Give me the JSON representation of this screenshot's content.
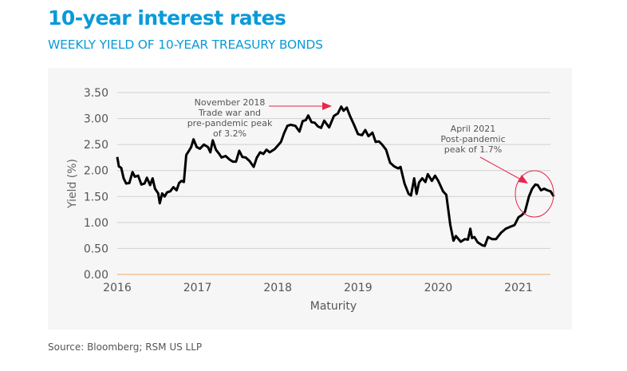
{
  "title": "10-year interest rates",
  "subtitle": "WEEKLY YIELD OF 10-YEAR TREASURY BONDS",
  "source": "Source: Bloomberg; RSM US LLP",
  "colors": {
    "title": "#0a9ad8",
    "line": "#000000",
    "annotation": "#e8264b",
    "zero_line": "#f4a460",
    "grid": "#d0d0d0"
  },
  "chart_data": {
    "type": "line",
    "xlabel": "Maturity",
    "ylabel": "Yield (%)",
    "xlim": [
      2016,
      2021.45
    ],
    "ylim": [
      0,
      3.5
    ],
    "grid": true,
    "x_ticks": [
      "2016",
      "2017",
      "2018",
      "2019",
      "2020",
      "2021"
    ],
    "y_ticks": [
      "0.00",
      "0.50",
      "1.00",
      "1.50",
      "2.00",
      "2.50",
      "3.00",
      "3.50"
    ],
    "annotations": [
      {
        "text": [
          "November 2018",
          "Trade war and",
          "pre-pandemic peak",
          "of 3.2%"
        ]
      },
      {
        "text": [
          "April 2021",
          "Post-pandemic",
          "peak of 1.7%"
        ]
      }
    ],
    "points": [
      [
        2016.0,
        2.26
      ],
      [
        2016.02,
        2.08
      ],
      [
        2016.05,
        2.05
      ],
      [
        2016.08,
        1.85
      ],
      [
        2016.11,
        1.75
      ],
      [
        2016.15,
        1.76
      ],
      [
        2016.19,
        1.97
      ],
      [
        2016.22,
        1.88
      ],
      [
        2016.26,
        1.9
      ],
      [
        2016.3,
        1.73
      ],
      [
        2016.34,
        1.75
      ],
      [
        2016.37,
        1.86
      ],
      [
        2016.41,
        1.72
      ],
      [
        2016.44,
        1.85
      ],
      [
        2016.47,
        1.65
      ],
      [
        2016.51,
        1.56
      ],
      [
        2016.53,
        1.37
      ],
      [
        2016.56,
        1.56
      ],
      [
        2016.59,
        1.5
      ],
      [
        2016.62,
        1.58
      ],
      [
        2016.66,
        1.6
      ],
      [
        2016.7,
        1.68
      ],
      [
        2016.74,
        1.62
      ],
      [
        2016.77,
        1.76
      ],
      [
        2016.8,
        1.8
      ],
      [
        2016.83,
        1.78
      ],
      [
        2016.86,
        2.3
      ],
      [
        2016.89,
        2.37
      ],
      [
        2016.92,
        2.45
      ],
      [
        2016.95,
        2.6
      ],
      [
        2016.99,
        2.45
      ],
      [
        2017.03,
        2.42
      ],
      [
        2017.08,
        2.5
      ],
      [
        2017.13,
        2.45
      ],
      [
        2017.16,
        2.35
      ],
      [
        2017.19,
        2.58
      ],
      [
        2017.23,
        2.4
      ],
      [
        2017.27,
        2.32
      ],
      [
        2017.3,
        2.25
      ],
      [
        2017.35,
        2.28
      ],
      [
        2017.4,
        2.21
      ],
      [
        2017.44,
        2.17
      ],
      [
        2017.48,
        2.17
      ],
      [
        2017.52,
        2.38
      ],
      [
        2017.56,
        2.26
      ],
      [
        2017.6,
        2.25
      ],
      [
        2017.65,
        2.18
      ],
      [
        2017.7,
        2.07
      ],
      [
        2017.74,
        2.25
      ],
      [
        2017.78,
        2.35
      ],
      [
        2017.82,
        2.32
      ],
      [
        2017.86,
        2.4
      ],
      [
        2017.9,
        2.35
      ],
      [
        2017.96,
        2.41
      ],
      [
        2018.0,
        2.48
      ],
      [
        2018.04,
        2.55
      ],
      [
        2018.08,
        2.72
      ],
      [
        2018.12,
        2.86
      ],
      [
        2018.16,
        2.88
      ],
      [
        2018.22,
        2.86
      ],
      [
        2018.27,
        2.75
      ],
      [
        2018.31,
        2.95
      ],
      [
        2018.35,
        2.97
      ],
      [
        2018.38,
        3.06
      ],
      [
        2018.42,
        2.93
      ],
      [
        2018.46,
        2.92
      ],
      [
        2018.5,
        2.85
      ],
      [
        2018.54,
        2.82
      ],
      [
        2018.58,
        2.96
      ],
      [
        2018.64,
        2.83
      ],
      [
        2018.7,
        3.05
      ],
      [
        2018.75,
        3.1
      ],
      [
        2018.79,
        3.23
      ],
      [
        2018.82,
        3.15
      ],
      [
        2018.86,
        3.21
      ],
      [
        2018.9,
        3.05
      ],
      [
        2018.95,
        2.88
      ],
      [
        2019.0,
        2.7
      ],
      [
        2019.05,
        2.68
      ],
      [
        2019.09,
        2.78
      ],
      [
        2019.13,
        2.66
      ],
      [
        2019.18,
        2.73
      ],
      [
        2019.22,
        2.55
      ],
      [
        2019.26,
        2.56
      ],
      [
        2019.3,
        2.5
      ],
      [
        2019.35,
        2.4
      ],
      [
        2019.4,
        2.15
      ],
      [
        2019.45,
        2.08
      ],
      [
        2019.5,
        2.04
      ],
      [
        2019.53,
        2.07
      ],
      [
        2019.58,
        1.75
      ],
      [
        2019.63,
        1.55
      ],
      [
        2019.66,
        1.52
      ],
      [
        2019.7,
        1.85
      ],
      [
        2019.73,
        1.55
      ],
      [
        2019.76,
        1.77
      ],
      [
        2019.8,
        1.85
      ],
      [
        2019.84,
        1.78
      ],
      [
        2019.87,
        1.93
      ],
      [
        2019.92,
        1.8
      ],
      [
        2019.96,
        1.9
      ],
      [
        2020.0,
        1.8
      ],
      [
        2020.06,
        1.6
      ],
      [
        2020.1,
        1.53
      ],
      [
        2020.15,
        0.95
      ],
      [
        2020.19,
        0.65
      ],
      [
        2020.22,
        0.74
      ],
      [
        2020.28,
        0.63
      ],
      [
        2020.33,
        0.68
      ],
      [
        2020.37,
        0.67
      ],
      [
        2020.4,
        0.88
      ],
      [
        2020.42,
        0.7
      ],
      [
        2020.45,
        0.72
      ],
      [
        2020.49,
        0.62
      ],
      [
        2020.55,
        0.56
      ],
      [
        2020.58,
        0.55
      ],
      [
        2020.62,
        0.72
      ],
      [
        2020.67,
        0.68
      ],
      [
        2020.72,
        0.68
      ],
      [
        2020.78,
        0.8
      ],
      [
        2020.84,
        0.88
      ],
      [
        2020.9,
        0.92
      ],
      [
        2020.95,
        0.95
      ],
      [
        2021.0,
        1.1
      ],
      [
        2021.04,
        1.14
      ],
      [
        2021.08,
        1.2
      ],
      [
        2021.13,
        1.5
      ],
      [
        2021.17,
        1.65
      ],
      [
        2021.21,
        1.73
      ],
      [
        2021.24,
        1.72
      ],
      [
        2021.28,
        1.62
      ],
      [
        2021.32,
        1.65
      ],
      [
        2021.36,
        1.62
      ],
      [
        2021.4,
        1.6
      ],
      [
        2021.44,
        1.5
      ]
    ]
  }
}
